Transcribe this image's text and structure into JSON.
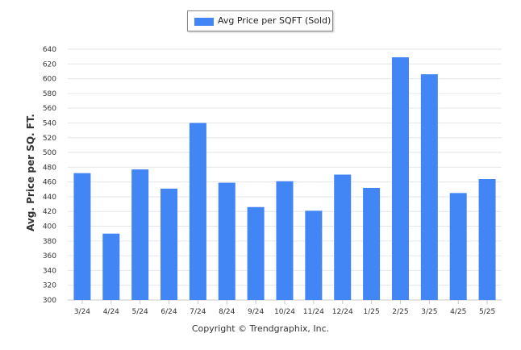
{
  "colors": {
    "bar": "#4285f4",
    "grid": "#e6e6e6",
    "axis": "#c8c8c8"
  },
  "legend": {
    "label": "Avg Price per SQFT (Sold)"
  },
  "footer": {
    "text": "Copyright © Trendgraphix, Inc."
  },
  "chart_data": {
    "type": "bar",
    "ylabel": "Avg. Price per SQ. FT.",
    "ylim": [
      300,
      640
    ],
    "yticks": [
      300,
      320,
      340,
      360,
      380,
      400,
      420,
      440,
      460,
      480,
      500,
      520,
      540,
      560,
      580,
      600,
      620,
      640
    ],
    "categories": [
      "3/24",
      "4/24",
      "5/24",
      "6/24",
      "7/24",
      "8/24",
      "9/24",
      "10/24",
      "11/24",
      "12/24",
      "1/25",
      "2/25",
      "3/25",
      "4/25",
      "5/25"
    ],
    "series": [
      {
        "name": "Avg Price per SQFT (Sold)",
        "values": [
          472,
          390,
          477,
          451,
          540,
          459,
          426,
          461,
          421,
          470,
          452,
          629,
          606,
          445,
          464
        ]
      }
    ],
    "grid": true,
    "legend_position": "top-center"
  }
}
